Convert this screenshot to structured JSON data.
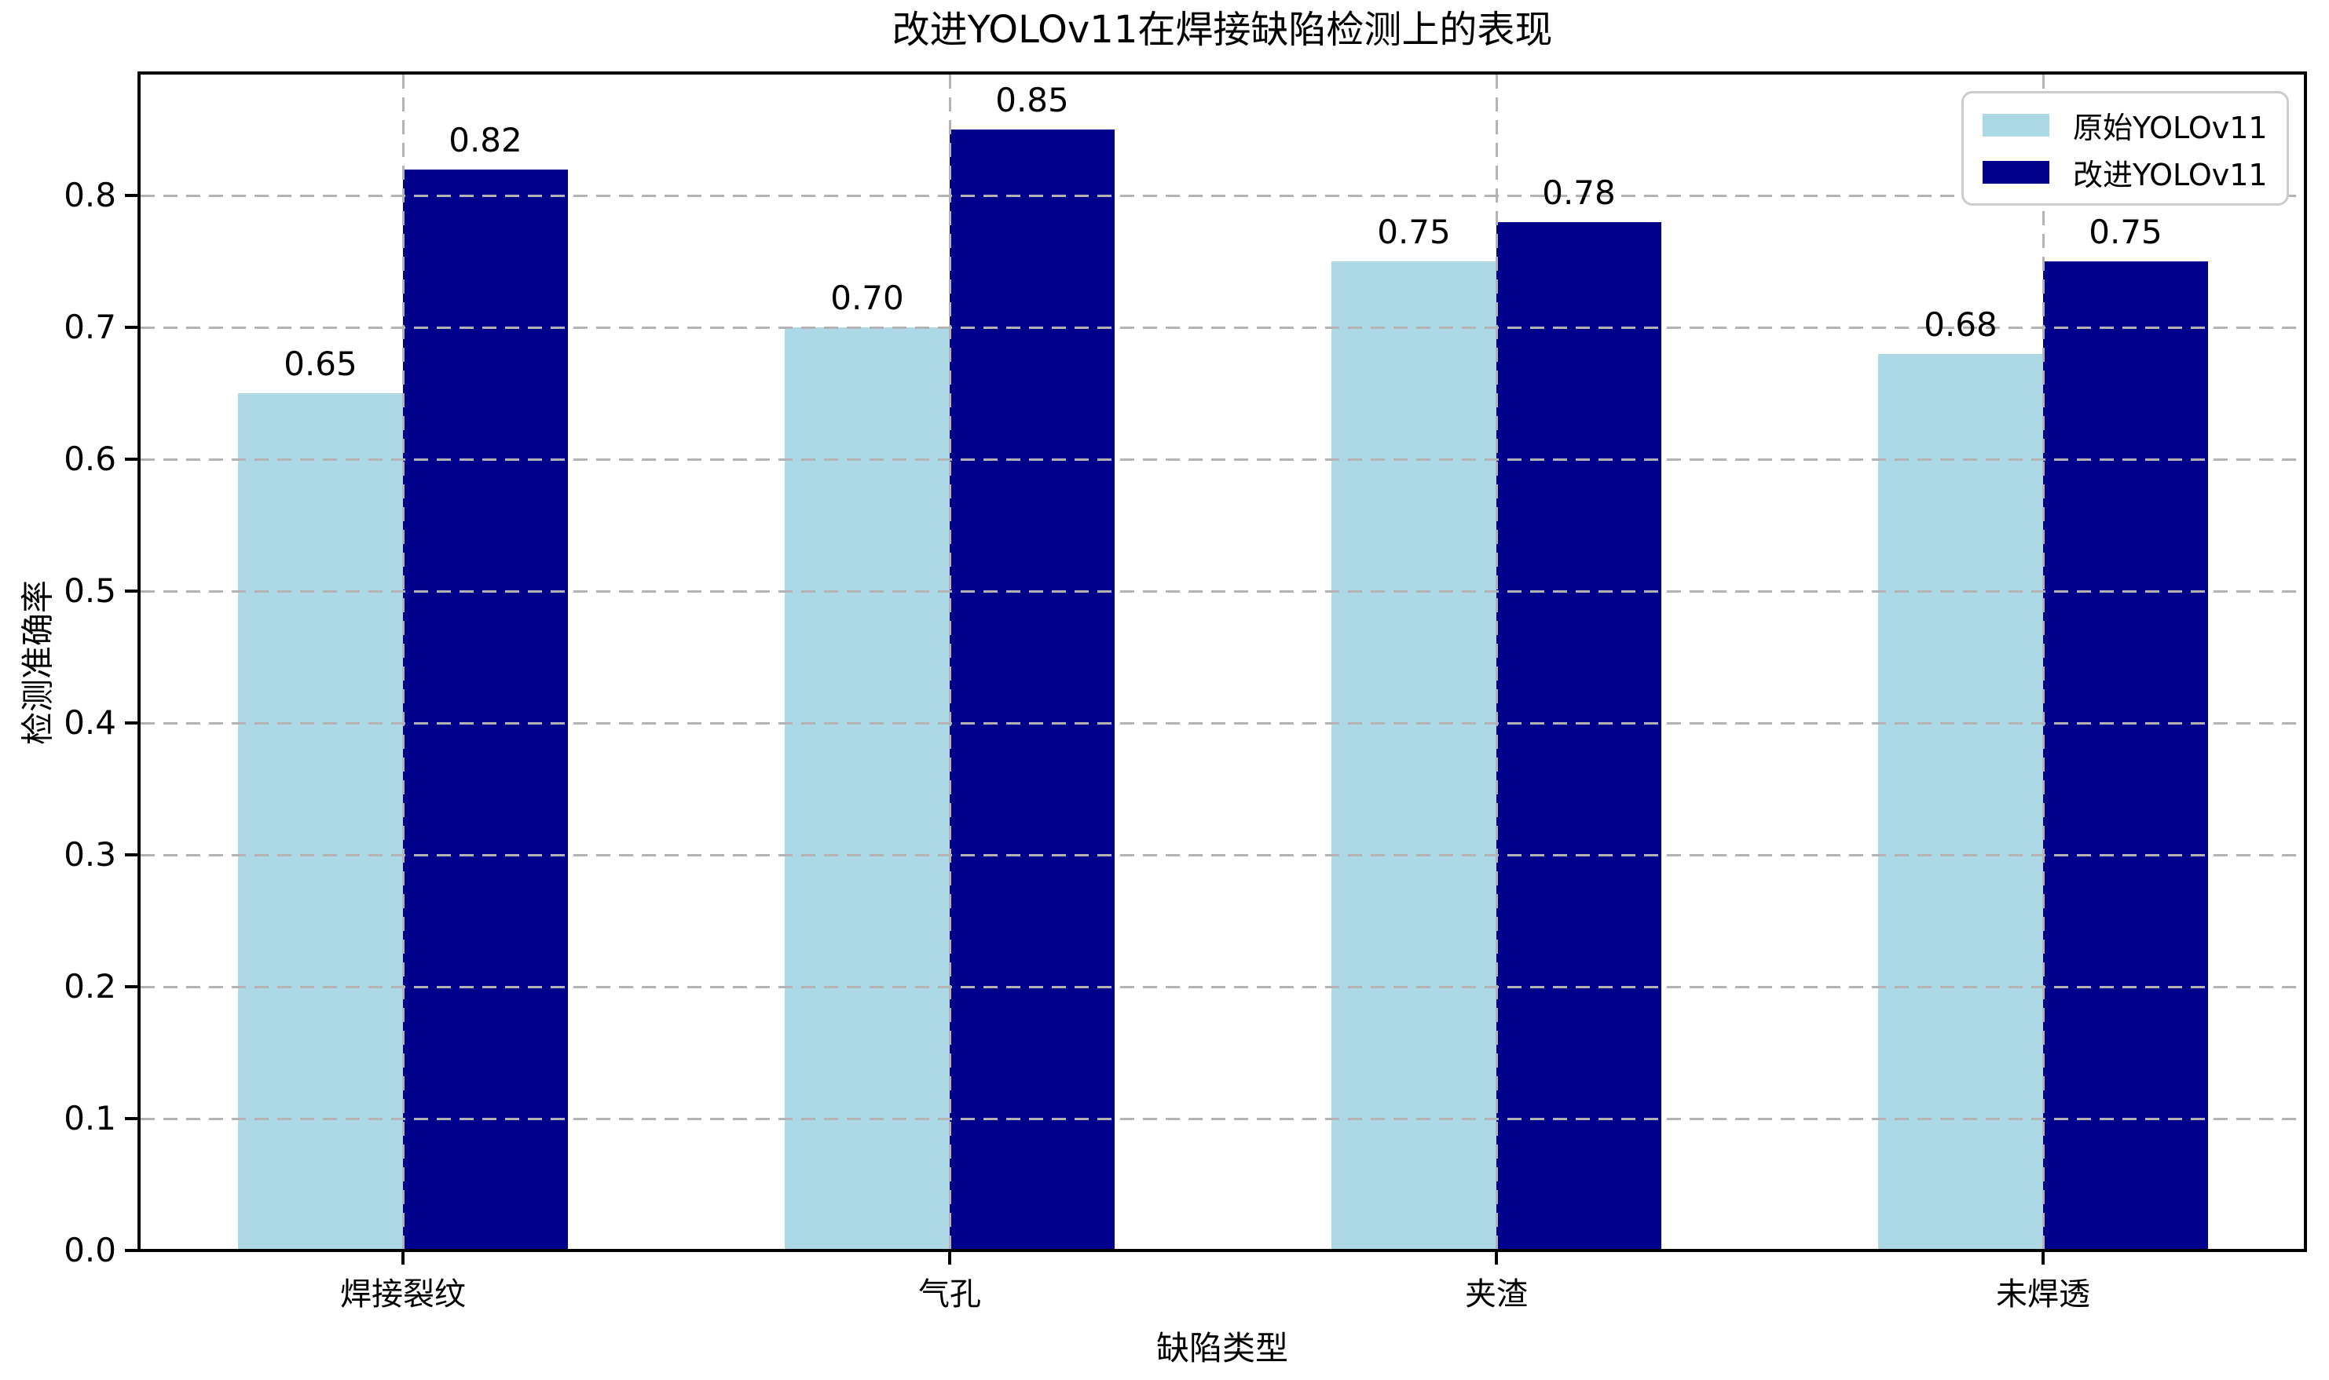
{
  "chart_data": {
    "type": "bar",
    "title": "改进YOLOv11在焊接缺陷检测上的表现",
    "xlabel": "缺陷类型",
    "ylabel": "检测准确率",
    "categories": [
      "焊接裂纹",
      "气孔",
      "夹渣",
      "未焊透"
    ],
    "series": [
      {
        "name": "原始YOLOv11",
        "color": "#ADD8E6",
        "values": [
          0.65,
          0.7,
          0.75,
          0.68
        ],
        "labels": [
          "0.65",
          "0.70",
          "0.75",
          "0.68"
        ]
      },
      {
        "name": "改进YOLOv11",
        "color": "#00008B",
        "values": [
          0.82,
          0.85,
          0.78,
          0.75
        ],
        "labels": [
          "0.82",
          "0.85",
          "0.78",
          "0.75"
        ]
      }
    ],
    "y_ticks": [
      "0.0",
      "0.1",
      "0.2",
      "0.3",
      "0.4",
      "0.5",
      "0.6",
      "0.7",
      "0.8"
    ],
    "ylim": [
      0,
      0.893
    ],
    "grid": "dashed gray, horizontal and vertical, drawn above bars",
    "legend_position": "upper right",
    "background_color": "#ffffff",
    "grid_color": "#b3b3b3",
    "legend_border_color": "#cccccc"
  }
}
